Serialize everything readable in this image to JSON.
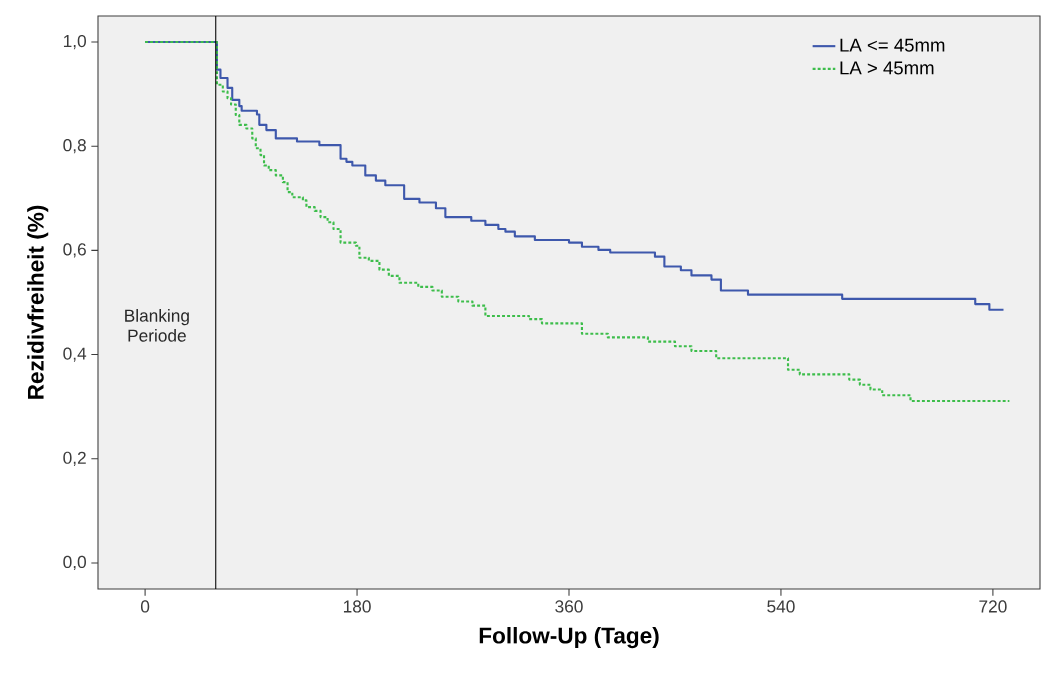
{
  "chart_data": {
    "type": "step",
    "xlabel": "Follow-Up (Tage)",
    "ylabel": "Rezidivfreiheit (%)",
    "xlim": [
      -40,
      760
    ],
    "ylim": [
      -0.05,
      1.05
    ],
    "xticks": [
      0,
      180,
      360,
      540,
      720
    ],
    "yticks": [
      {
        "value": 0.0,
        "label": "0,0"
      },
      {
        "value": 0.2,
        "label": "0,2"
      },
      {
        "value": 0.4,
        "label": "0,4"
      },
      {
        "value": 0.6,
        "label": "0,6"
      },
      {
        "value": 0.8,
        "label": "0,8"
      },
      {
        "value": 1.0,
        "label": "1,0"
      }
    ],
    "grid": false,
    "legend": "top right",
    "marker": "none",
    "ref_lines": [
      {
        "axis": "x",
        "value": 60,
        "label": "Blanking Periode",
        "color": "#000000"
      }
    ],
    "series": [
      {
        "name": "LA <= 45mm",
        "color": "#3e58ac",
        "line_style": "solid",
        "x": [
          0,
          61,
          64,
          70,
          74,
          80,
          82,
          95,
          97,
          103,
          111,
          129,
          148,
          166,
          171,
          176,
          187,
          196,
          204,
          220,
          233,
          247,
          255,
          277,
          289,
          300,
          306,
          314,
          331,
          360,
          371,
          385,
          395,
          433,
          441,
          455,
          464,
          481,
          489,
          512,
          592,
          705,
          717,
          729
        ],
        "values": [
          1.0,
          0.947,
          0.931,
          0.912,
          0.889,
          0.877,
          0.868,
          0.861,
          0.841,
          0.831,
          0.815,
          0.809,
          0.802,
          0.776,
          0.77,
          0.763,
          0.744,
          0.734,
          0.725,
          0.699,
          0.692,
          0.681,
          0.664,
          0.657,
          0.649,
          0.641,
          0.636,
          0.627,
          0.62,
          0.615,
          0.607,
          0.601,
          0.596,
          0.588,
          0.569,
          0.562,
          0.552,
          0.544,
          0.523,
          0.515,
          0.507,
          0.497,
          0.486,
          0.486
        ]
      },
      {
        "name": "LA  >  45mm",
        "color": "#3dbd4b",
        "line_style": "dotted",
        "x": [
          0,
          61,
          66,
          70,
          73,
          77,
          80,
          86,
          91,
          94,
          98,
          101,
          105,
          111,
          117,
          121,
          125,
          134,
          137,
          144,
          149,
          155,
          160,
          166,
          179,
          182,
          190,
          199,
          207,
          216,
          232,
          244,
          252,
          266,
          278,
          289,
          326,
          337,
          371,
          393,
          427,
          450,
          464,
          485,
          546,
          556,
          598,
          607,
          616,
          626,
          650,
          734
        ],
        "values": [
          1.0,
          0.918,
          0.905,
          0.892,
          0.88,
          0.86,
          0.841,
          0.834,
          0.815,
          0.796,
          0.783,
          0.763,
          0.754,
          0.744,
          0.731,
          0.712,
          0.702,
          0.696,
          0.683,
          0.676,
          0.664,
          0.654,
          0.641,
          0.615,
          0.609,
          0.586,
          0.58,
          0.563,
          0.551,
          0.538,
          0.53,
          0.523,
          0.511,
          0.502,
          0.494,
          0.474,
          0.468,
          0.46,
          0.44,
          0.433,
          0.425,
          0.416,
          0.407,
          0.393,
          0.371,
          0.362,
          0.352,
          0.342,
          0.333,
          0.322,
          0.311,
          0.311
        ]
      }
    ]
  }
}
